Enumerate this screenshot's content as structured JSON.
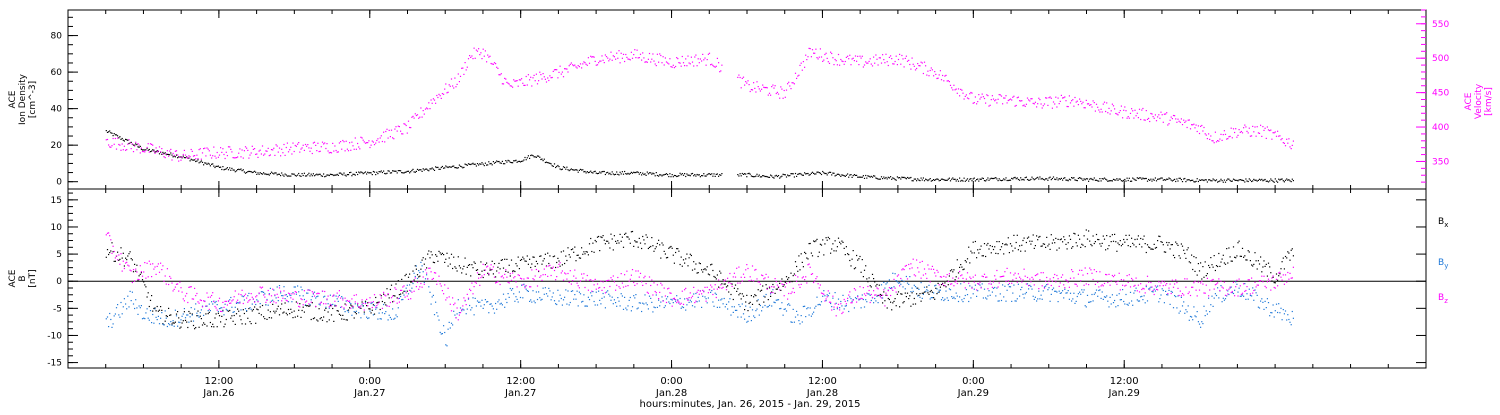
{
  "chart_data": [
    {
      "type": "scatter",
      "panel": "top",
      "left_axis": {
        "label_lines": [
          "ACE",
          "Ion Density",
          "[cm^-3]"
        ],
        "ticks": [
          0,
          20,
          40,
          60,
          80
        ],
        "ylim": [
          -4,
          94
        ],
        "color": "#000000"
      },
      "right_axis": {
        "label_lines": [
          "ACE",
          "Velocity",
          "[km/s]"
        ],
        "ticks": [
          350,
          400,
          450,
          500,
          550
        ],
        "ylim": [
          310,
          570
        ],
        "color": "#ff00ff"
      },
      "series": [
        {
          "axis": "left",
          "color": "#000000",
          "x": [
            0,
            3,
            6,
            9,
            12,
            15,
            18,
            21,
            24,
            27,
            30,
            33,
            34,
            36,
            39,
            42,
            45,
            48,
            51,
            53,
            57,
            60,
            63,
            66,
            69,
            72,
            75,
            78,
            81,
            84,
            87,
            90,
            93,
            94.5
          ],
          "y": [
            28,
            18,
            14,
            8,
            5,
            4,
            4,
            5,
            6,
            8,
            10,
            12,
            15,
            8,
            5,
            5,
            4,
            4,
            4,
            3,
            5,
            3,
            2,
            1.5,
            1.5,
            2,
            2,
            1.5,
            1.5,
            1.5,
            1,
            1,
            1,
            1
          ]
        },
        {
          "axis": "right",
          "color": "#ff00ff",
          "x": [
            0,
            3,
            6,
            8,
            12,
            15,
            18,
            21,
            24,
            26,
            28,
            29,
            30,
            32,
            33,
            35,
            37,
            39,
            42,
            45,
            48,
            51,
            54,
            56,
            58,
            60,
            63,
            66,
            69,
            72,
            74,
            77,
            80,
            84,
            87,
            88,
            90,
            92,
            94.5
          ],
          "y": [
            380,
            370,
            358,
            363,
            365,
            370,
            372,
            380,
            400,
            440,
            470,
            505,
            510,
            460,
            465,
            475,
            485,
            500,
            505,
            495,
            500,
            460,
            450,
            510,
            500,
            495,
            500,
            480,
            440,
            440,
            435,
            440,
            425,
            415,
            400,
            385,
            395,
            395,
            375
          ]
        }
      ]
    },
    {
      "type": "scatter",
      "panel": "bottom",
      "left_axis": {
        "label_lines": [
          "ACE",
          "B",
          "[nT]"
        ],
        "ticks": [
          -15,
          -10,
          -5,
          0,
          5,
          10,
          15
        ],
        "ylim": [
          -16,
          17
        ],
        "color": "#000000"
      },
      "legend": [
        "Bx",
        "By",
        "Bz"
      ],
      "series": [
        {
          "name": "Bx",
          "color": "#000000",
          "x": [
            0,
            2,
            4,
            6,
            9,
            12,
            15,
            18,
            21,
            24,
            26,
            28,
            30,
            33,
            36,
            39,
            42,
            45,
            48,
            51,
            54,
            56,
            58,
            60,
            62,
            64,
            66,
            69,
            72,
            75,
            78,
            81,
            84,
            86,
            87,
            90,
            93,
            94.5
          ],
          "y": [
            6,
            4,
            -6,
            -7,
            -7,
            -6,
            -5,
            -6,
            -5,
            0,
            5,
            3,
            2,
            3,
            4,
            7,
            8,
            5,
            2,
            -4,
            0,
            6,
            7,
            3,
            -4,
            -3,
            -2,
            6,
            7,
            7,
            8,
            7,
            7,
            5,
            2,
            6,
            1,
            6
          ]
        },
        {
          "name": "By",
          "color": "#1e78d8",
          "x": [
            0,
            2,
            3,
            5,
            8,
            11,
            14,
            17,
            20,
            23,
            25,
            27,
            28,
            30,
            33,
            36,
            39,
            42,
            45,
            48,
            51,
            53,
            55,
            57,
            59,
            61,
            63,
            65,
            67,
            69,
            72,
            75,
            78,
            81,
            84,
            87,
            88,
            90,
            92,
            94.5
          ],
          "y": [
            -8,
            -3,
            -6,
            -7,
            -5,
            -4,
            -2,
            -3,
            -5,
            -6,
            3,
            -11,
            -4,
            -5,
            -2,
            -3,
            -3,
            -4,
            -4,
            -3,
            -6,
            -3,
            -7,
            -3,
            -4,
            -3,
            1,
            -2,
            -2,
            -2,
            -2,
            -2,
            -3,
            -3,
            -2,
            -7,
            -3,
            -1,
            -4,
            -7
          ]
        },
        {
          "name": "Bz",
          "color": "#ff00ff",
          "x": [
            0,
            2,
            4,
            6,
            9,
            12,
            15,
            18,
            21,
            24,
            26,
            28,
            30,
            33,
            36,
            39,
            42,
            45,
            48,
            51,
            54,
            56,
            58,
            60,
            62,
            64,
            66,
            69,
            72,
            75,
            78,
            81,
            84,
            87,
            90,
            93,
            94.5
          ],
          "y": [
            8,
            1,
            3,
            -2,
            -4,
            -2,
            -3,
            -3,
            -4,
            -2,
            2,
            -6,
            2,
            0,
            2,
            -1,
            1,
            -3,
            -2,
            2,
            -2,
            2,
            -5,
            -2,
            -3,
            3,
            1,
            0,
            1,
            0,
            1,
            0,
            -1,
            -1,
            -1,
            0,
            2
          ]
        }
      ]
    }
  ],
  "x_axis": {
    "xlim": [
      -3,
      105
    ],
    "major_ticks": [
      {
        "x": 9,
        "time": "12:00",
        "date": "Jan.26"
      },
      {
        "x": 21,
        "time": "0:00",
        "date": "Jan.27"
      },
      {
        "x": 33,
        "time": "12:00",
        "date": "Jan.27"
      },
      {
        "x": 45,
        "time": "0:00",
        "date": "Jan.28"
      },
      {
        "x": 57,
        "time": "12:00",
        "date": "Jan.28"
      },
      {
        "x": 69,
        "time": "0:00",
        "date": "Jan.29"
      },
      {
        "x": 81,
        "time": "12:00",
        "date": "Jan.29"
      }
    ],
    "title": "hours:minutes, Jan. 26, 2015 - Jan. 29, 2015"
  },
  "legend_labels": {
    "bx": {
      "base": "B",
      "sub": "x",
      "color": "#000000"
    },
    "by": {
      "base": "B",
      "sub": "y",
      "color": "#1e78d8"
    },
    "bz": {
      "base": "B",
      "sub": "z",
      "color": "#ff00ff"
    }
  }
}
